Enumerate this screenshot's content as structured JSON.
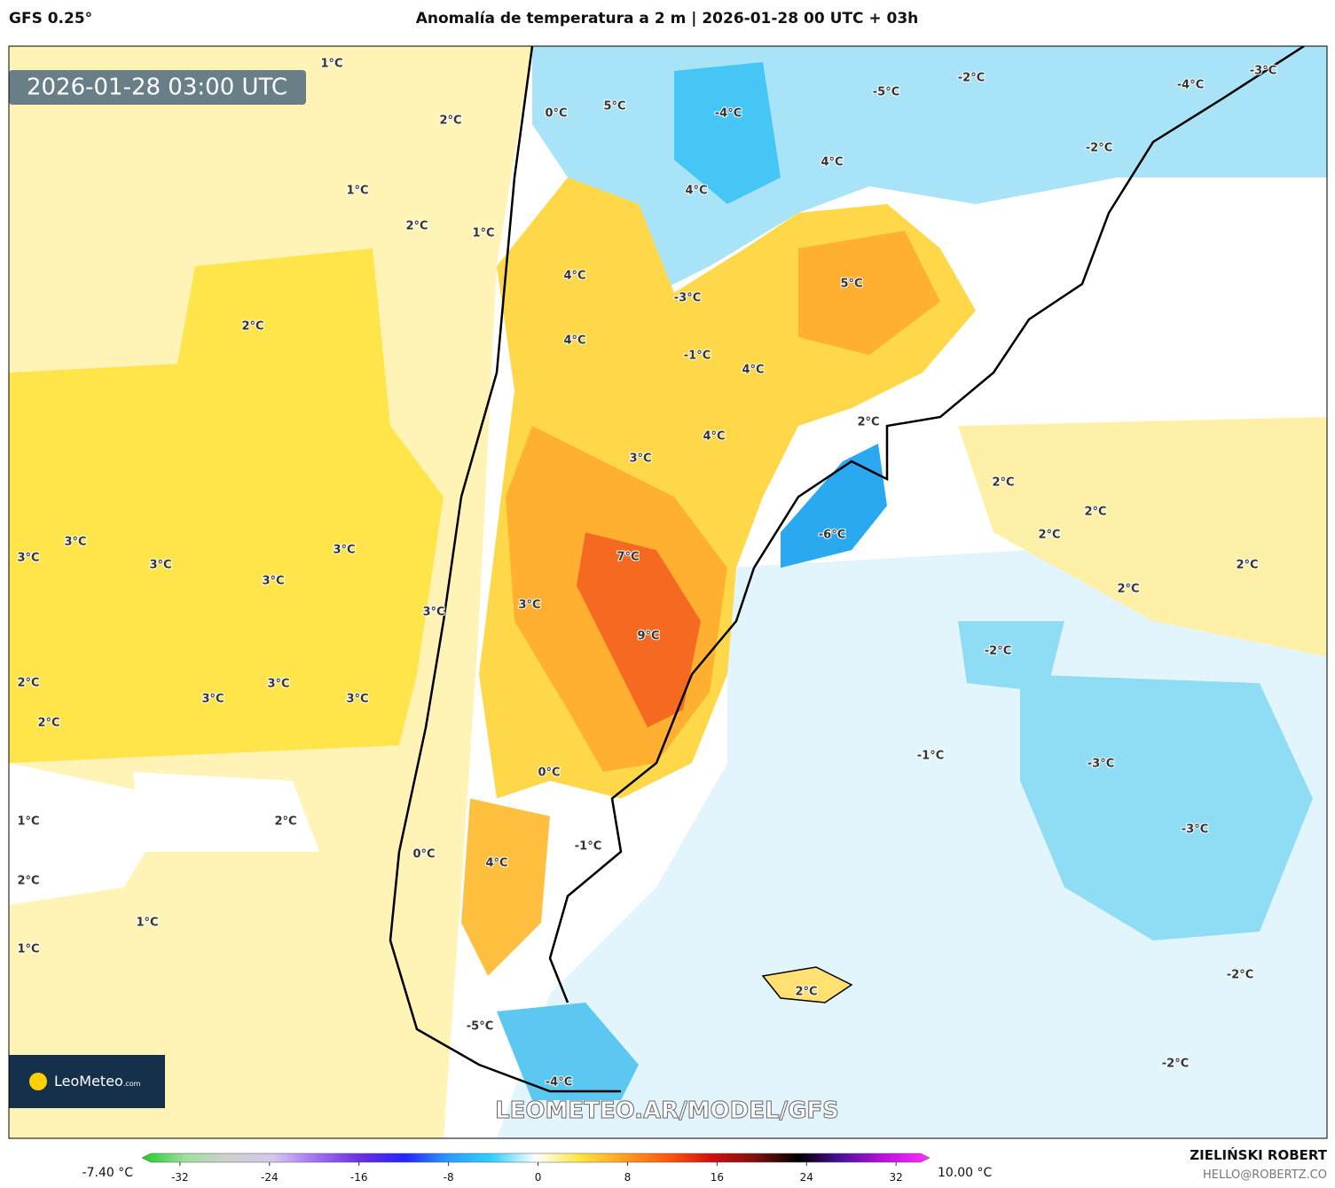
{
  "header": {
    "model": "GFS 0.25°",
    "title": "Anomalía de temperatura a 2 m | 2026-01-28 00 UTC + 03h"
  },
  "map": {
    "timestamp": "2026-01-28 03:00 UTC",
    "watermark": "LEOMETEO.AR/MODEL/GFS",
    "logo": "LeoMeteo",
    "logo_suffix": ".com",
    "contour_labels": [
      "1°C",
      "2°C",
      "0°C",
      "5°C",
      "-4°C",
      "-5°C",
      "-2°C",
      "-4°C",
      "-3°C",
      "1°C",
      "4°C",
      "4°C",
      "-2°C",
      "2°C",
      "1°C",
      "4°C",
      "-3°C",
      "5°C",
      "2°C",
      "4°C",
      "-1°C",
      "4°C",
      "2°C",
      "4°C",
      "3°C",
      "2°C",
      "2°C",
      "2°C",
      "-6°C",
      "3°C",
      "3°C",
      "3°C",
      "3°C",
      "3°C",
      "7°C",
      "2°C",
      "2°C",
      "3°C",
      "3°C",
      "9°C",
      "-2°C",
      "2°C",
      "3°C",
      "3°C",
      "3°C",
      "2°C",
      "-1°C",
      "-3°C",
      "0°C",
      "1°C",
      "2°C",
      "-3°C",
      "-1°C",
      "0°C",
      "4°C",
      "2°C",
      "1°C",
      "1°C",
      "-2°C",
      "2°C",
      "-2°C",
      "-5°C",
      "-4°C"
    ]
  },
  "colorbar": {
    "min_label": "-7.40 °C",
    "max_label": "10.00 °C",
    "lim": [
      -35.4,
      35
    ],
    "ticks": [
      -32,
      -24,
      -16,
      -8,
      0,
      8,
      16,
      24,
      32
    ],
    "colors": [
      "#22cc22",
      "#9ee09e",
      "#cfcfcf",
      "#d6c6f0",
      "#a070f0",
      "#6a2fe0",
      "#2424ff",
      "#2a9cff",
      "#30d0ff",
      "#ffffff",
      "#ffe640",
      "#ffa020",
      "#ff5a10",
      "#d01010",
      "#801010",
      "#000000",
      "#5010a0",
      "#c010e0",
      "#ff30ff"
    ]
  },
  "credit": {
    "author": "ZIELIŃSKI ROBERT",
    "email": "HELLO@ROBERTZ.CO"
  }
}
